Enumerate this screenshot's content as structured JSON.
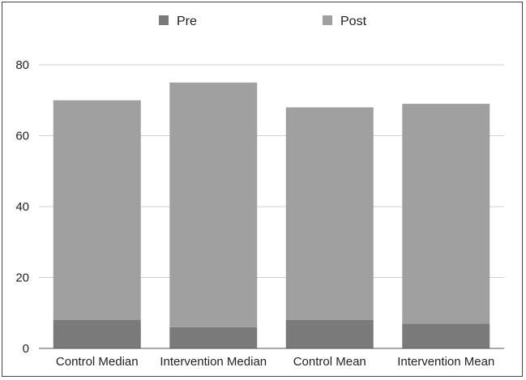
{
  "chart_data": {
    "type": "bar",
    "stacked": true,
    "categories": [
      "Control Median",
      "Intervention Median",
      "Control Mean",
      "Intervention Mean"
    ],
    "series": [
      {
        "name": "Pre",
        "color": "#7a7a7a",
        "values": [
          8,
          6,
          8,
          7
        ]
      },
      {
        "name": "Post",
        "color": "#a0a0a0",
        "values": [
          62,
          69,
          60,
          62
        ]
      }
    ],
    "yticks": [
      0,
      20,
      40,
      60,
      80
    ],
    "ylim": [
      0,
      80
    ],
    "grid": true,
    "legend_position": "top-center",
    "title": "",
    "xlabel": "",
    "ylabel": ""
  }
}
